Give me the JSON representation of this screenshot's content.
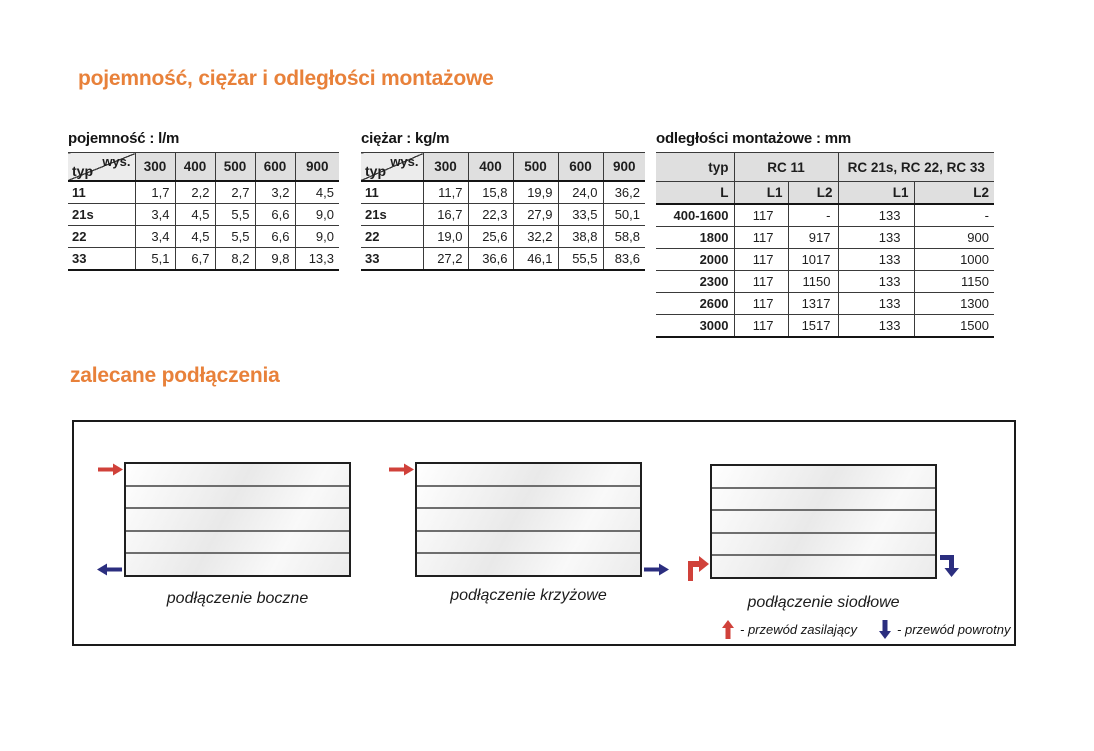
{
  "page": {
    "heading_main": "pojemność, ciężar i odległości montażowe",
    "heading_connections": "zalecane podłączenia"
  },
  "colors": {
    "accent_orange": "#e8813a",
    "supply_red": "#d0413a",
    "return_blue": "#2b2e7f",
    "table_header_gray": "#dfdfdf"
  },
  "tables": {
    "capacity": {
      "title": "pojemność : l/m",
      "corner_top": "wys.",
      "corner_bottom": "typ",
      "columns": [
        "300",
        "400",
        "500",
        "600",
        "900"
      ],
      "rows": [
        [
          "11",
          "1,7",
          "2,2",
          "2,7",
          "3,2",
          "4,5"
        ],
        [
          "21s",
          "3,4",
          "4,5",
          "5,5",
          "6,6",
          "9,0"
        ],
        [
          "22",
          "3,4",
          "4,5",
          "5,5",
          "6,6",
          "9,0"
        ],
        [
          "33",
          "5,1",
          "6,7",
          "8,2",
          "9,8",
          "13,3"
        ]
      ]
    },
    "weight": {
      "title": "ciężar : kg/m",
      "corner_top": "wys.",
      "corner_bottom": "typ",
      "columns": [
        "300",
        "400",
        "500",
        "600",
        "900"
      ],
      "rows": [
        [
          "11",
          "11,7",
          "15,8",
          "19,9",
          "24,0",
          "36,2"
        ],
        [
          "21s",
          "16,7",
          "22,3",
          "27,9",
          "33,5",
          "50,1"
        ],
        [
          "22",
          "19,0",
          "25,6",
          "32,2",
          "38,8",
          "58,8"
        ],
        [
          "33",
          "27,2",
          "36,6",
          "46,1",
          "55,5",
          "83,6"
        ]
      ]
    },
    "mounting": {
      "title": "odległości montażowe : mm",
      "group_headers": {
        "typ": "typ",
        "rc11": "RC 11",
        "rc2x": "RC 21s, RC 22, RC 33"
      },
      "sub_headers": [
        "L",
        "L1",
        "L2",
        "L1",
        "L2"
      ],
      "rows": [
        [
          "400-1600",
          "117",
          "-",
          "133",
          "-"
        ],
        [
          "1800",
          "117",
          "917",
          "133",
          "900"
        ],
        [
          "2000",
          "117",
          "1017",
          "133",
          "1000"
        ],
        [
          "2300",
          "117",
          "1150",
          "133",
          "1150"
        ],
        [
          "2600",
          "117",
          "1317",
          "133",
          "1300"
        ],
        [
          "3000",
          "117",
          "1517",
          "133",
          "1500"
        ]
      ]
    }
  },
  "diagrams": {
    "items": [
      {
        "caption": "podłączenie boczne"
      },
      {
        "caption": "podłączenie krzyżowe"
      },
      {
        "caption": "podłączenie siodłowe"
      }
    ],
    "legend": {
      "supply_label": "- przewód zasilający",
      "return_label": "- przewód powrotny"
    }
  }
}
